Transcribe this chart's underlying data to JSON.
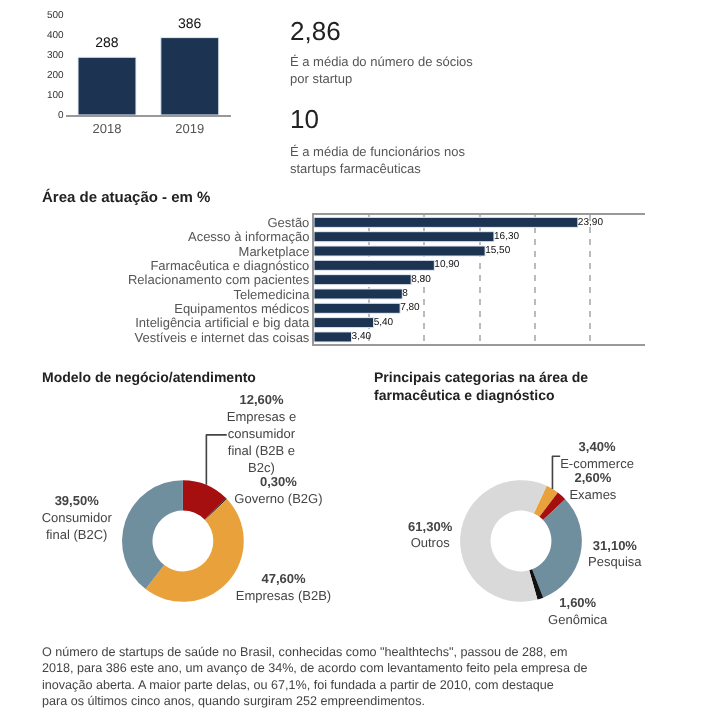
{
  "chart_data": [
    {
      "type": "bar",
      "categories": [
        "2018",
        "2019"
      ],
      "values": [
        288,
        386
      ],
      "color": "#1c3452",
      "ylim": [
        0,
        500
      ],
      "yticks": [
        0,
        100,
        200,
        300,
        400,
        500
      ],
      "data_labels": true,
      "grid": false
    },
    {
      "type": "other",
      "annotations": [
        "2,86",
        "É a média do número de sócios por startup",
        "10",
        "É a média de funcionários nos startups farmacêuticas"
      ]
    },
    {
      "type": "bar",
      "orientation": "horizontal",
      "title": "Área de atuação - em %",
      "categories": [
        "Gestão",
        "Acesso à informação",
        "Marketplace",
        "Farmacêutica e diagnóstico",
        "Relacionamento com pacientes",
        "Telemedicina",
        "Equipamentos médicos",
        "Inteligência artificial e big data",
        "Vestíveis e internet das coisas"
      ],
      "values": [
        23.9,
        16.3,
        15.5,
        10.9,
        8.8,
        8,
        7.8,
        5.4,
        3.4
      ],
      "value_labels": [
        "23,90",
        "16,30",
        "15,50",
        "10,90",
        "8,80",
        "8",
        "7,80",
        "5,40",
        "3,40"
      ],
      "color": "#1c3452",
      "xlim": [
        0,
        30
      ],
      "xticks": [
        {
          "value": 0,
          "label": null
        },
        {
          "value": 5,
          "label": null
        },
        {
          "value": 10,
          "label": null
        },
        {
          "value": 15,
          "label": null
        },
        {
          "value": 20,
          "label": null
        },
        {
          "value": 25,
          "label": null
        }
      ],
      "grid": "x",
      "tick_labels": "y"
    },
    {
      "type": "donut",
      "title": "Modelo de negócio/atendimento",
      "categories": [
        "Empresas e consumidor final (B2B e B2c)",
        "Governo (B2G)",
        "Empresas (B2B)",
        "Consumidor final (B2C)"
      ],
      "values": [
        12.6,
        0.3,
        47.6,
        39.5
      ],
      "value_labels": [
        "12,60%",
        "0,30%",
        "47,60%",
        "39,50%"
      ],
      "colors": [
        "#a50f0f",
        "#222222",
        "#e9a23b",
        "#6f8e9e"
      ]
    },
    {
      "type": "donut",
      "title": "Principais categorias na área de farmacêutica e diagnóstico",
      "categories": [
        "E-commerce",
        "Exames",
        "Pesquisa",
        "Genômica",
        "Outros"
      ],
      "values": [
        3.4,
        2.6,
        31.1,
        1.6,
        61.3
      ],
      "value_labels": [
        "3,40%",
        "2,60%",
        "31,10%",
        "1,60%",
        "61,30%"
      ],
      "colors": [
        "#e9a23b",
        "#a50f0f",
        "#6f8e9e",
        "#111111",
        "#d9d9d9"
      ]
    },
    {
      "type": "other",
      "annotations": [
        "O número de startups de saúde no Brasil, conhecidas como \"healthtechs\", passou de 288, em 2018, para 386 este ano, um avanço de 34%, de acordo com levantamento feito pela empresa de inovação aberta. A maior parte delas, ou 67,1%, foi fundada a partir de 2010, com destaque para os últimos cinco anos, quando surgiram 252 empreendimentos."
      ]
    }
  ]
}
